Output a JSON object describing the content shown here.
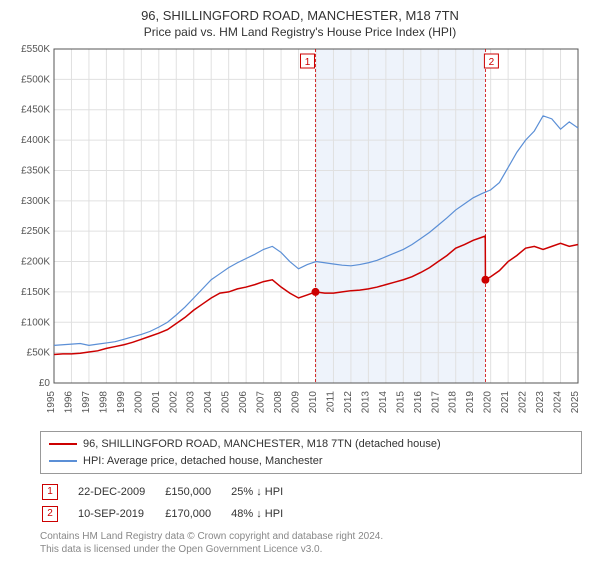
{
  "title": {
    "main": "96, SHILLINGFORD ROAD, MANCHESTER, M18 7TN",
    "sub": "Price paid vs. HM Land Registry's House Price Index (HPI)"
  },
  "chart": {
    "type": "line",
    "background_color": "#ffffff",
    "plot_bg": "#ffffff",
    "grid_color": "#e0e0e0",
    "axis_color": "#555555",
    "tick_fontsize": 10,
    "tick_color": "#555555",
    "xlim": [
      1995,
      2025
    ],
    "ylim": [
      0,
      550000
    ],
    "ytick_step": 50000,
    "ytick_labels": [
      "£0",
      "£50K",
      "£100K",
      "£150K",
      "£200K",
      "£250K",
      "£300K",
      "£350K",
      "£400K",
      "£450K",
      "£500K",
      "£550K"
    ],
    "xtick_step": 1,
    "xtick_labels": [
      "1995",
      "1996",
      "1997",
      "1998",
      "1999",
      "2000",
      "2001",
      "2002",
      "2003",
      "2004",
      "2005",
      "2006",
      "2007",
      "2008",
      "2009",
      "2010",
      "2011",
      "2012",
      "2013",
      "2014",
      "2015",
      "2016",
      "2017",
      "2018",
      "2019",
      "2020",
      "2021",
      "2022",
      "2023",
      "2024",
      "2025"
    ],
    "shaded_region": {
      "x_start": 2009.97,
      "x_end": 2019.7,
      "fill": "#eef3fb"
    },
    "series": [
      {
        "name": "property",
        "label": "96, SHILLINGFORD ROAD, MANCHESTER, M18 7TN (detached house)",
        "color": "#cc0000",
        "line_width": 1.5,
        "data": [
          [
            1995,
            47000
          ],
          [
            1995.5,
            48000
          ],
          [
            1996,
            48000
          ],
          [
            1996.5,
            49000
          ],
          [
            1997,
            51000
          ],
          [
            1997.5,
            53000
          ],
          [
            1998,
            57000
          ],
          [
            1998.5,
            60000
          ],
          [
            1999,
            63000
          ],
          [
            1999.5,
            67000
          ],
          [
            2000,
            72000
          ],
          [
            2000.5,
            77000
          ],
          [
            2001,
            82000
          ],
          [
            2001.5,
            88000
          ],
          [
            2002,
            98000
          ],
          [
            2002.5,
            108000
          ],
          [
            2003,
            120000
          ],
          [
            2003.5,
            130000
          ],
          [
            2004,
            140000
          ],
          [
            2004.5,
            148000
          ],
          [
            2005,
            150000
          ],
          [
            2005.5,
            155000
          ],
          [
            2006,
            158000
          ],
          [
            2006.5,
            162000
          ],
          [
            2007,
            167000
          ],
          [
            2007.5,
            170000
          ],
          [
            2008,
            158000
          ],
          [
            2008.5,
            148000
          ],
          [
            2009,
            140000
          ],
          [
            2009.5,
            145000
          ],
          [
            2009.97,
            150000
          ],
          [
            2010.5,
            148000
          ],
          [
            2011,
            148000
          ],
          [
            2011.5,
            150000
          ],
          [
            2012,
            152000
          ],
          [
            2012.5,
            153000
          ],
          [
            2013,
            155000
          ],
          [
            2013.5,
            158000
          ],
          [
            2014,
            162000
          ],
          [
            2014.5,
            166000
          ],
          [
            2015,
            170000
          ],
          [
            2015.5,
            175000
          ],
          [
            2016,
            182000
          ],
          [
            2016.5,
            190000
          ],
          [
            2017,
            200000
          ],
          [
            2017.5,
            210000
          ],
          [
            2018,
            222000
          ],
          [
            2018.5,
            228000
          ],
          [
            2019,
            235000
          ],
          [
            2019.5,
            240000
          ],
          [
            2019.69,
            242000
          ],
          [
            2019.7,
            170000
          ],
          [
            2020,
            175000
          ],
          [
            2020.5,
            185000
          ],
          [
            2021,
            200000
          ],
          [
            2021.5,
            210000
          ],
          [
            2022,
            222000
          ],
          [
            2022.5,
            225000
          ],
          [
            2023,
            220000
          ],
          [
            2023.5,
            225000
          ],
          [
            2024,
            230000
          ],
          [
            2024.5,
            225000
          ],
          [
            2025,
            228000
          ]
        ]
      },
      {
        "name": "hpi",
        "label": "HPI: Average price, detached house, Manchester",
        "color": "#5b8fd6",
        "line_width": 1.2,
        "data": [
          [
            1995,
            62000
          ],
          [
            1995.5,
            63000
          ],
          [
            1996,
            64000
          ],
          [
            1996.5,
            65000
          ],
          [
            1997,
            62000
          ],
          [
            1997.5,
            64000
          ],
          [
            1998,
            66000
          ],
          [
            1998.5,
            68000
          ],
          [
            1999,
            72000
          ],
          [
            1999.5,
            76000
          ],
          [
            2000,
            80000
          ],
          [
            2000.5,
            85000
          ],
          [
            2001,
            92000
          ],
          [
            2001.5,
            100000
          ],
          [
            2002,
            112000
          ],
          [
            2002.5,
            125000
          ],
          [
            2003,
            140000
          ],
          [
            2003.5,
            155000
          ],
          [
            2004,
            170000
          ],
          [
            2004.5,
            180000
          ],
          [
            2005,
            190000
          ],
          [
            2005.5,
            198000
          ],
          [
            2006,
            205000
          ],
          [
            2006.5,
            212000
          ],
          [
            2007,
            220000
          ],
          [
            2007.5,
            225000
          ],
          [
            2008,
            215000
          ],
          [
            2008.5,
            200000
          ],
          [
            2009,
            188000
          ],
          [
            2009.5,
            195000
          ],
          [
            2010,
            200000
          ],
          [
            2010.5,
            198000
          ],
          [
            2011,
            196000
          ],
          [
            2011.5,
            194000
          ],
          [
            2012,
            193000
          ],
          [
            2012.5,
            195000
          ],
          [
            2013,
            198000
          ],
          [
            2013.5,
            202000
          ],
          [
            2014,
            208000
          ],
          [
            2014.5,
            214000
          ],
          [
            2015,
            220000
          ],
          [
            2015.5,
            228000
          ],
          [
            2016,
            238000
          ],
          [
            2016.5,
            248000
          ],
          [
            2017,
            260000
          ],
          [
            2017.5,
            272000
          ],
          [
            2018,
            285000
          ],
          [
            2018.5,
            295000
          ],
          [
            2019,
            305000
          ],
          [
            2019.5,
            312000
          ],
          [
            2020,
            318000
          ],
          [
            2020.5,
            330000
          ],
          [
            2021,
            355000
          ],
          [
            2021.5,
            380000
          ],
          [
            2022,
            400000
          ],
          [
            2022.5,
            415000
          ],
          [
            2023,
            440000
          ],
          [
            2023.5,
            435000
          ],
          [
            2024,
            418000
          ],
          [
            2024.5,
            430000
          ],
          [
            2025,
            420000
          ]
        ]
      }
    ],
    "markers": [
      {
        "id": "1",
        "x": 2009.97,
        "y": 150000,
        "border_color": "#cc0000",
        "fill": "#ffffff",
        "label_offset_x": -0.4
      },
      {
        "id": "2",
        "x": 2019.7,
        "y": 170000,
        "border_color": "#cc0000",
        "fill": "#ffffff",
        "label_offset_x": 0.4
      }
    ],
    "marker_dot_radius": 4,
    "marker_dot_fill": "#cc0000"
  },
  "legend": {
    "border_color": "#999999",
    "fontsize": 11
  },
  "marker_table": {
    "rows": [
      {
        "id": "1",
        "date": "22-DEC-2009",
        "price": "£150,000",
        "delta": "25% ↓ HPI"
      },
      {
        "id": "2",
        "date": "10-SEP-2019",
        "price": "£170,000",
        "delta": "48% ↓ HPI"
      }
    ],
    "badge_border": "#cc0000",
    "badge_text": "#cc0000"
  },
  "license": {
    "line1": "Contains HM Land Registry data © Crown copyright and database right 2024.",
    "line2": "This data is licensed under the Open Government Licence v3.0."
  }
}
